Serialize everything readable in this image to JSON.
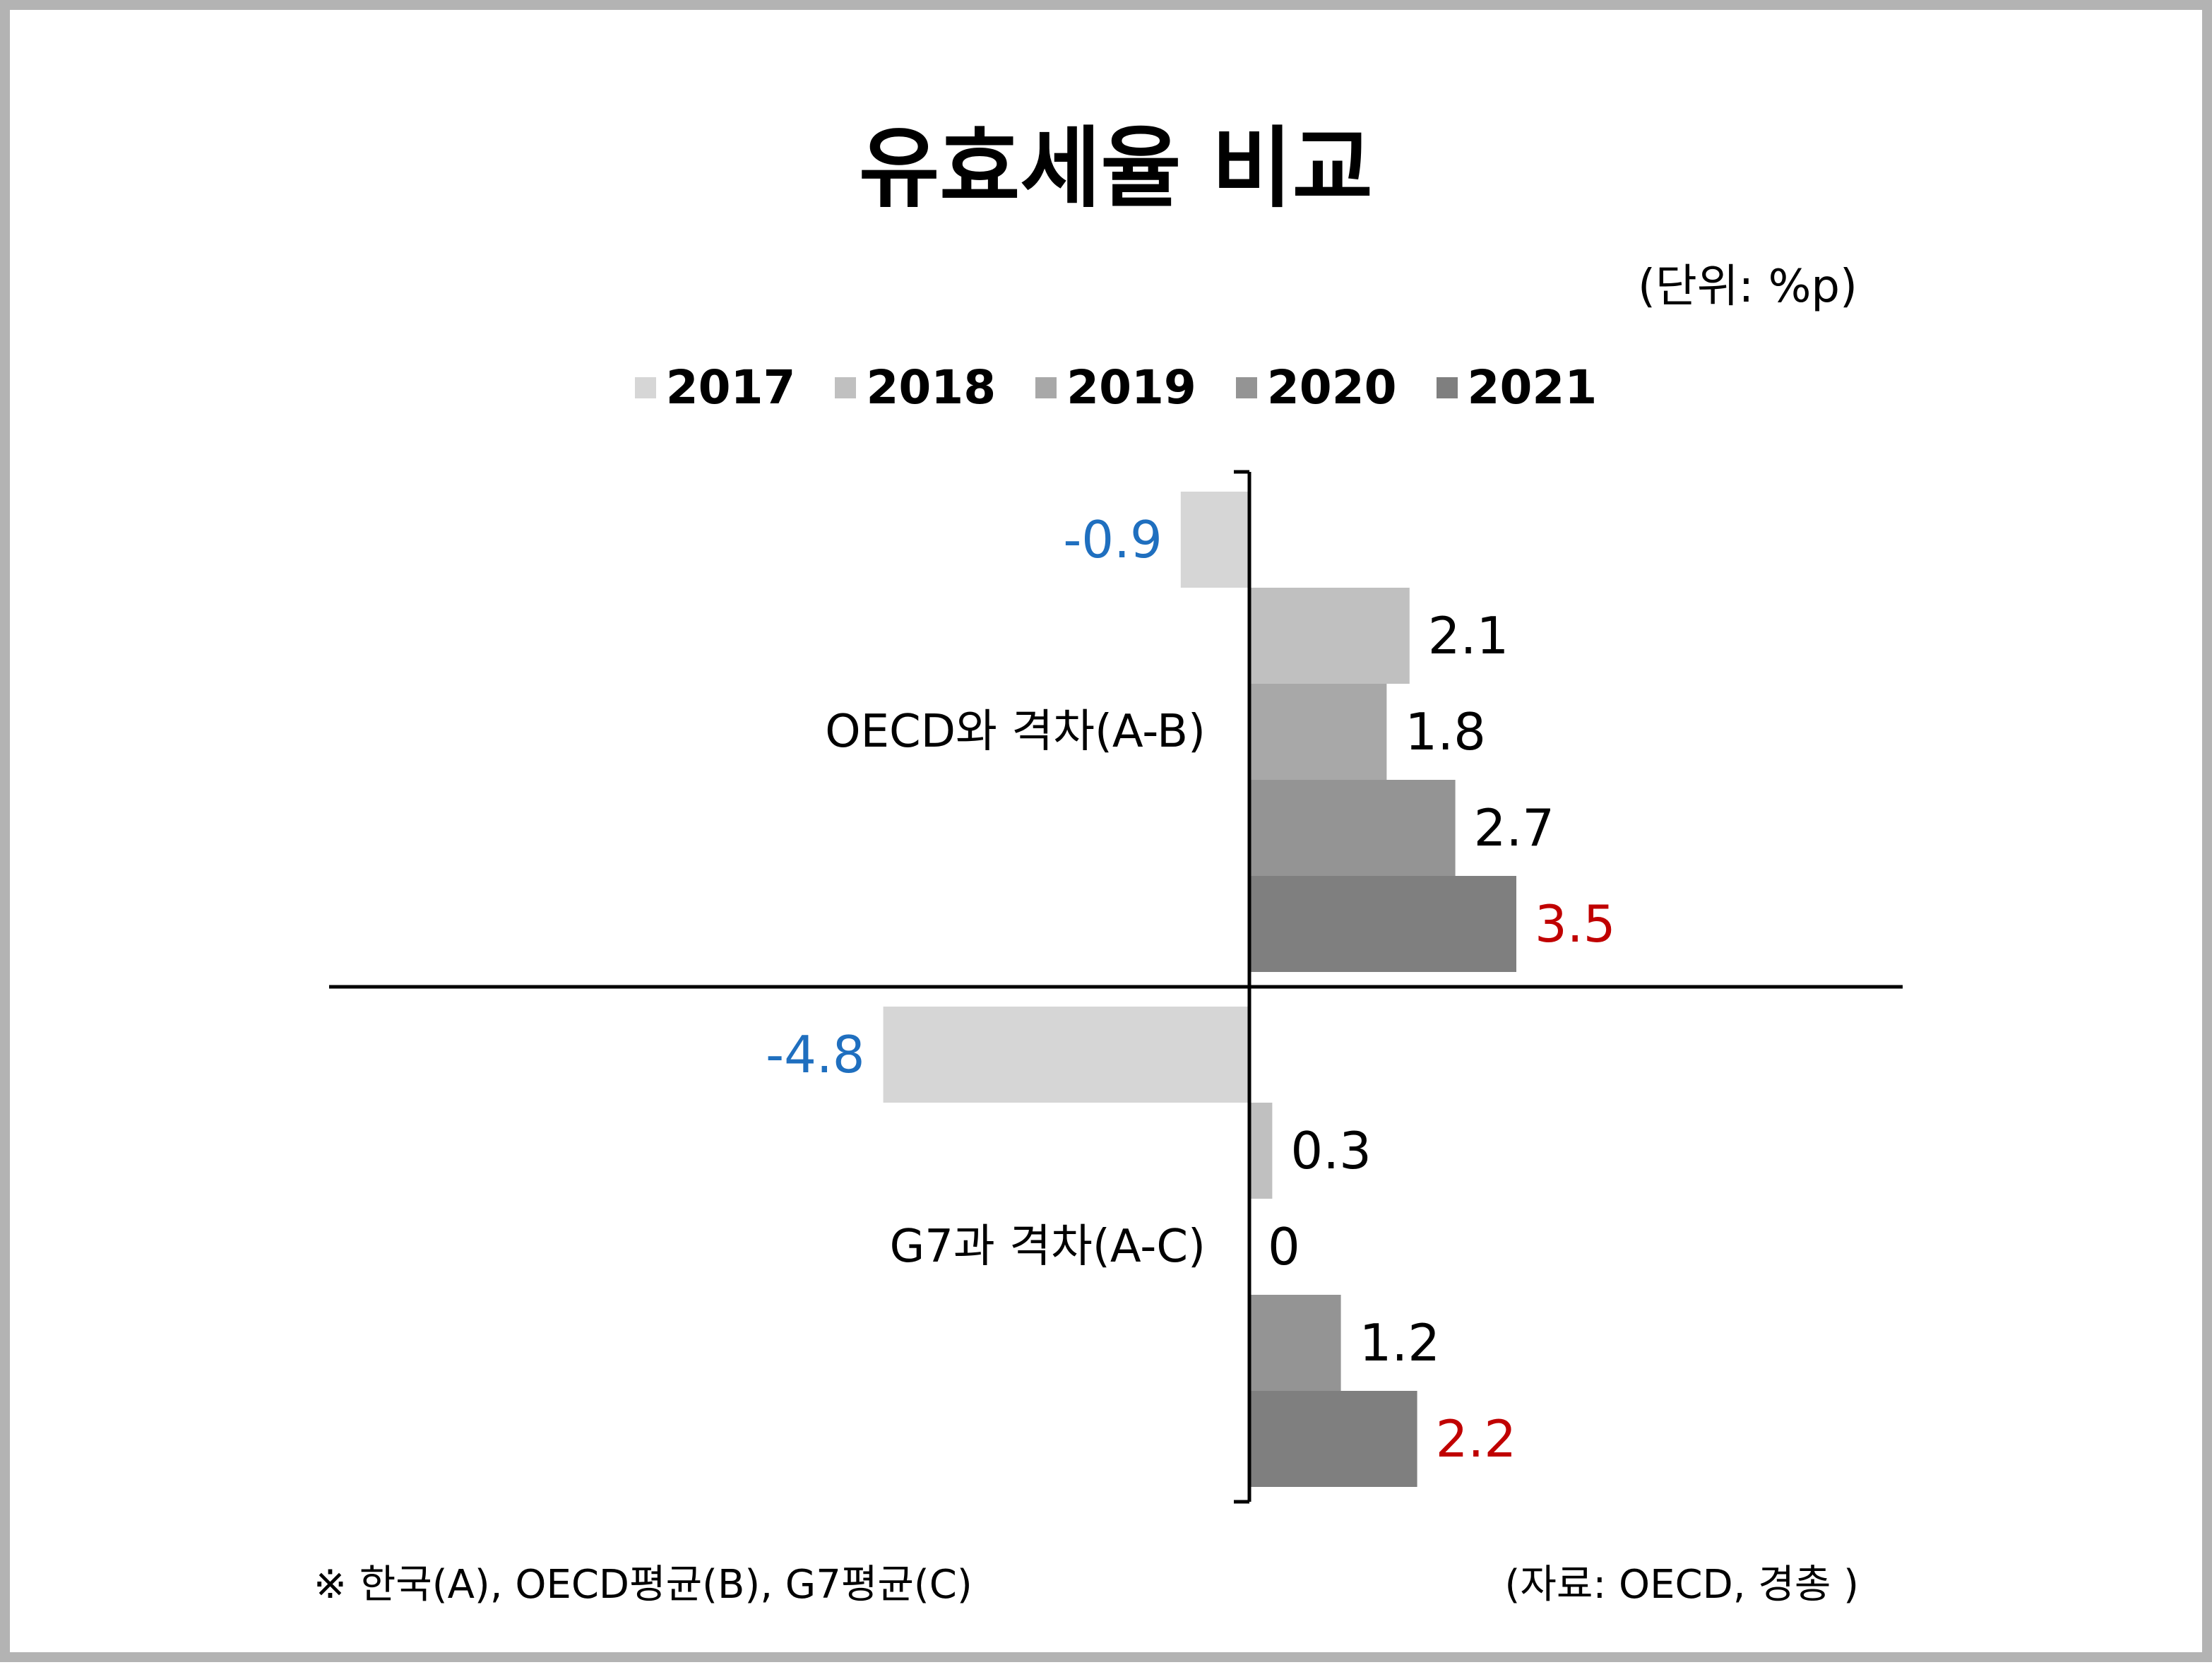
{
  "title": "유효세율 비교",
  "unit_label": "(단위: %p)",
  "footnote": "※ 한국(A), OECD평균(B), G7평균(C)",
  "source": "(자료: OECD, 경총 )",
  "colors": {
    "negative_label": "#1f6fbf",
    "latest_label": "#c00000",
    "default_label": "#000000",
    "series": [
      "#d6d6d6",
      "#c0c0c0",
      "#a8a8a8",
      "#949494",
      "#7f7f7f"
    ]
  },
  "chart_data": {
    "type": "bar",
    "orientation": "horizontal",
    "title": "유효세율 비교",
    "unit": "%p",
    "categories": [
      "OECD와 격차(A-B)",
      "G7과 격차(A-C)"
    ],
    "series": [
      {
        "name": "2017",
        "values": [
          -0.9,
          -4.8
        ]
      },
      {
        "name": "2018",
        "values": [
          2.1,
          0.3
        ]
      },
      {
        "name": "2019",
        "values": [
          1.8,
          0
        ]
      },
      {
        "name": "2020",
        "values": [
          2.7,
          1.2
        ]
      },
      {
        "name": "2021",
        "values": [
          3.5,
          2.2
        ]
      }
    ],
    "value_labels": [
      [
        "-0.9",
        "2.1",
        "1.8",
        "2.7",
        "3.5"
      ],
      [
        "-4.8",
        "0.3",
        "0",
        "1.2",
        "2.2"
      ]
    ],
    "xlim": [
      -4.8,
      4.0
    ],
    "grid": false,
    "legend_position": "top"
  }
}
